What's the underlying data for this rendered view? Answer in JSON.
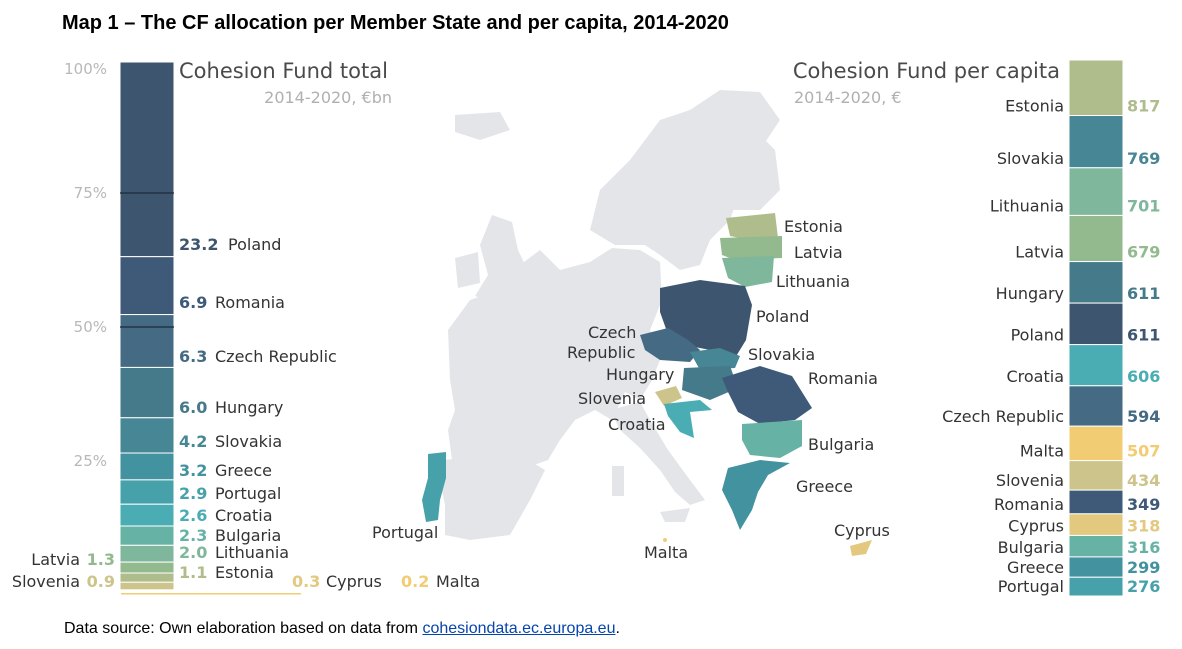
{
  "title": "Map 1 – The CF allocation per Member State and per capita, 2014-2020",
  "footer": {
    "prefix": "Data source: Own elaboration based on data from ",
    "link": "cohesiondata.ec.europa.eu",
    "suffix": "."
  },
  "colors": {
    "background_land": "#e3e5e9",
    "bar_divider": "#ffffff"
  },
  "chart_data": [
    {
      "type": "bar",
      "title": "Cohesion Fund total",
      "subtitle": "2014-2020, €bn",
      "axis_ticks": [
        "100%",
        "75%",
        "50%",
        "25%"
      ],
      "stacked": true,
      "items": [
        {
          "name": "Poland",
          "value": "23.2",
          "color": "#3e5570"
        },
        {
          "name": "Romania",
          "value": "6.9",
          "color": "#3e5a78"
        },
        {
          "name": "Czech Republic",
          "value": "6.3",
          "color": "#456b84"
        },
        {
          "name": "Hungary",
          "value": "6.0",
          "color": "#457a8a"
        },
        {
          "name": "Slovakia",
          "value": "4.2",
          "color": "#468695"
        },
        {
          "name": "Greece",
          "value": "3.2",
          "color": "#42929f"
        },
        {
          "name": "Portugal",
          "value": "2.9",
          "color": "#47a1aa"
        },
        {
          "name": "Croatia",
          "value": "2.6",
          "color": "#4aadb3"
        },
        {
          "name": "Bulgaria",
          "value": "2.3",
          "color": "#66b3a6"
        },
        {
          "name": "Lithuania",
          "value": "2.0",
          "color": "#7fb79c"
        },
        {
          "name": "Latvia",
          "value": "1.3",
          "color": "#93b98e"
        },
        {
          "name": "Estonia",
          "value": "1.1",
          "color": "#afbc8b"
        },
        {
          "name": "Slovenia",
          "value": "0.9",
          "color": "#ccc48a"
        },
        {
          "name": "Cyprus",
          "value": "0.3",
          "color": "#e3c87f"
        },
        {
          "name": "Malta",
          "value": "0.2",
          "color": "#f2cc72"
        }
      ]
    },
    {
      "type": "bar",
      "title": "Cohesion Fund per capita",
      "subtitle": "2014-2020, €",
      "items": [
        {
          "name": "Estonia",
          "value": "817",
          "color": "#afbc8b"
        },
        {
          "name": "Slovakia",
          "value": "769",
          "color": "#468695"
        },
        {
          "name": "Lithuania",
          "value": "701",
          "color": "#7fb79c"
        },
        {
          "name": "Latvia",
          "value": "679",
          "color": "#93b98e"
        },
        {
          "name": "Hungary",
          "value": "611",
          "color": "#457a8a"
        },
        {
          "name": "Poland",
          "value": "611",
          "color": "#3e5570"
        },
        {
          "name": "Croatia",
          "value": "606",
          "color": "#4aadb3"
        },
        {
          "name": "Czech Republic",
          "value": "594",
          "color": "#456b84"
        },
        {
          "name": "Malta",
          "value": "507",
          "color": "#f2cc72"
        },
        {
          "name": "Slovenia",
          "value": "434",
          "color": "#ccc48a"
        },
        {
          "name": "Romania",
          "value": "349",
          "color": "#3e5a78"
        },
        {
          "name": "Cyprus",
          "value": "318",
          "color": "#e3c87f"
        },
        {
          "name": "Bulgaria",
          "value": "316",
          "color": "#66b3a6"
        },
        {
          "name": "Greece",
          "value": "299",
          "color": "#42929f"
        },
        {
          "name": "Portugal",
          "value": "276",
          "color": "#47a1aa"
        }
      ]
    }
  ],
  "map_labels": [
    "Estonia",
    "Latvia",
    "Lithuania",
    "Poland",
    "Czech",
    "Republic",
    "Slovakia",
    "Hungary",
    "Romania",
    "Slovenia",
    "Croatia",
    "Bulgaria",
    "Greece",
    "Portugal",
    "Cyprus",
    "Malta"
  ]
}
